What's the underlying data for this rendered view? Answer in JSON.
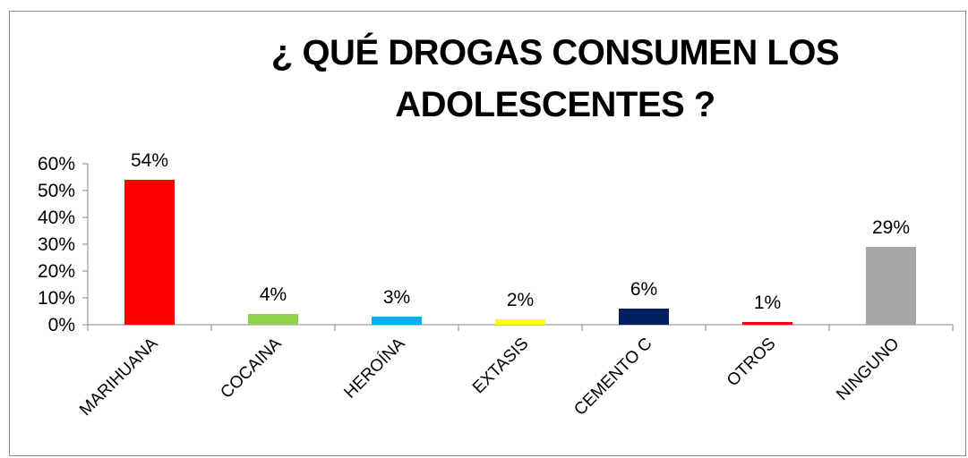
{
  "chart_data": {
    "type": "bar",
    "title": "¿ QUÉ DROGAS CONSUMEN LOS ADOLESCENTES ?",
    "categories": [
      "MARIHUANA",
      "COCAINA",
      "HEROÍNA",
      "EXTASIS",
      "CEMENTO C",
      "OTROS",
      "NINGUNO"
    ],
    "values": [
      54,
      4,
      3,
      2,
      6,
      1,
      29
    ],
    "data_labels": [
      "54%",
      "4%",
      "3%",
      "2%",
      "6%",
      "1%",
      "29%"
    ],
    "colors": [
      "#ff0000",
      "#92d050",
      "#00b0f0",
      "#ffff00",
      "#002060",
      "#ff0000",
      "#a6a6a6"
    ],
    "ylim": [
      0,
      60
    ],
    "yticks": [
      0,
      10,
      20,
      30,
      40,
      50,
      60
    ],
    "ytick_labels": [
      "0%",
      "10%",
      "20%",
      "30%",
      "40%",
      "50%",
      "60%"
    ],
    "xlabel": "",
    "ylabel": "",
    "grid": false,
    "legend": "none"
  }
}
